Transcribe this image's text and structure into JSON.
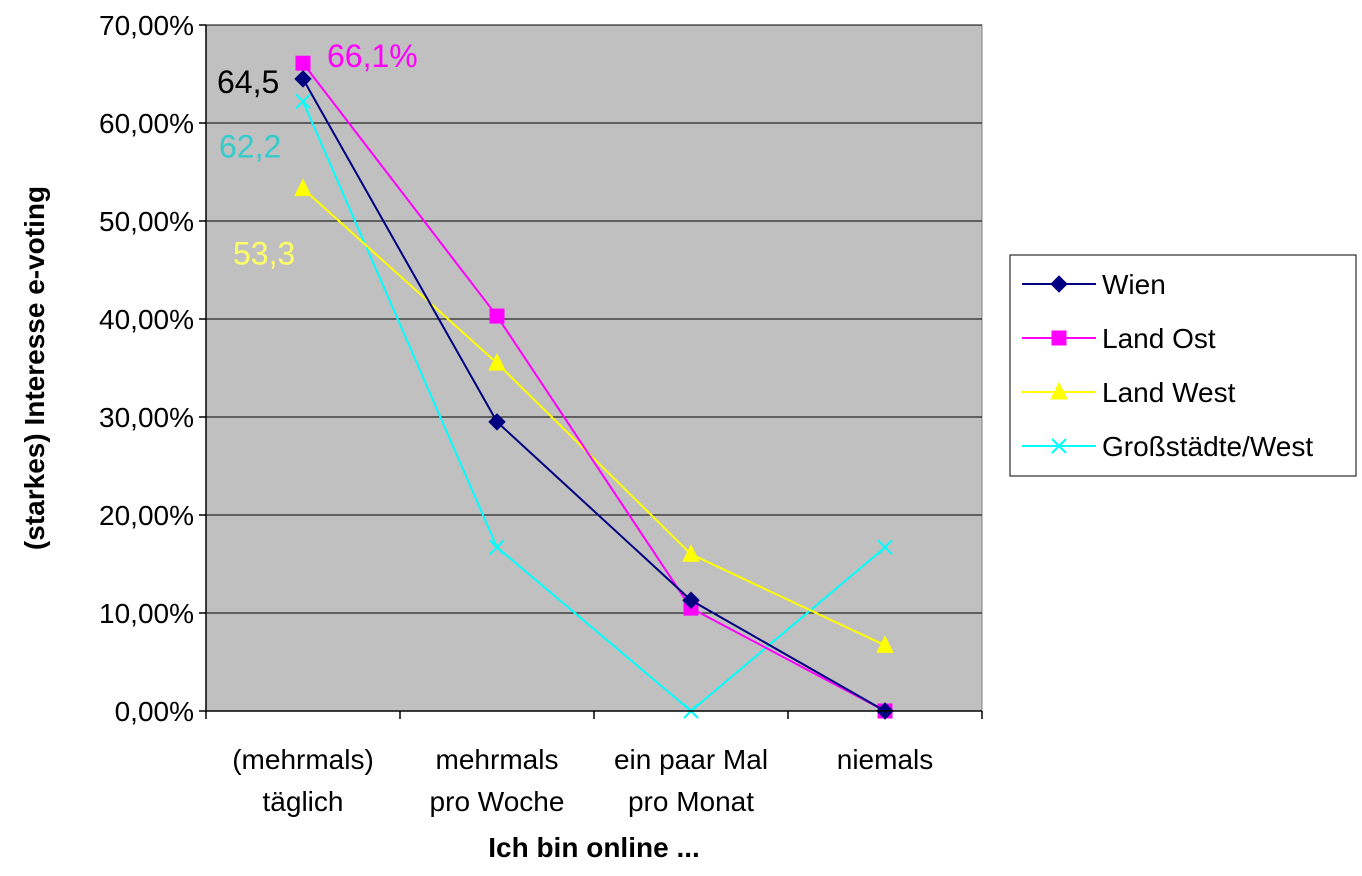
{
  "chart_data": {
    "type": "line",
    "xlabel": "Ich bin online ...",
    "ylabel": "(starkes) Interesse e-voting",
    "ylim": [
      0,
      70
    ],
    "y_ticks": [
      "0,00%",
      "10,00%",
      "20,00%",
      "30,00%",
      "40,00%",
      "50,00%",
      "60,00%",
      "70,00%"
    ],
    "categories": [
      [
        "(mehrmals)",
        "täglich"
      ],
      [
        "mehrmals",
        "pro Woche"
      ],
      [
        "ein paar Mal",
        "pro Monat"
      ],
      [
        "niemals"
      ]
    ],
    "grid": "horizontal",
    "plot_background": "#C0C0C0",
    "legend_position": "right",
    "series": [
      {
        "name": "Wien",
        "color": "#000080",
        "marker": "diamond",
        "values": [
          64.5,
          29.5,
          11.3,
          0.0
        ]
      },
      {
        "name": "Land Ost",
        "color": "#FF00FF",
        "marker": "square",
        "values": [
          66.1,
          40.3,
          10.5,
          0.0
        ]
      },
      {
        "name": "Land West",
        "color": "#FFFF00",
        "marker": "triangle",
        "values": [
          53.3,
          35.5,
          16.0,
          6.7
        ]
      },
      {
        "name": "Großstädte/West",
        "color": "#00FFFF",
        "marker": "x",
        "values": [
          62.2,
          16.7,
          0.0,
          16.7
        ]
      }
    ],
    "annotations": [
      {
        "text": "64,5",
        "color": "#000000",
        "series": "Wien"
      },
      {
        "text": "66,1%",
        "color": "#FF00FF",
        "series": "Land Ost"
      },
      {
        "text": "62,2",
        "color": "#33CCCC",
        "series": "Großstädte/West"
      },
      {
        "text": "53,3",
        "color": "#FFFF66",
        "series": "Land West"
      }
    ]
  }
}
